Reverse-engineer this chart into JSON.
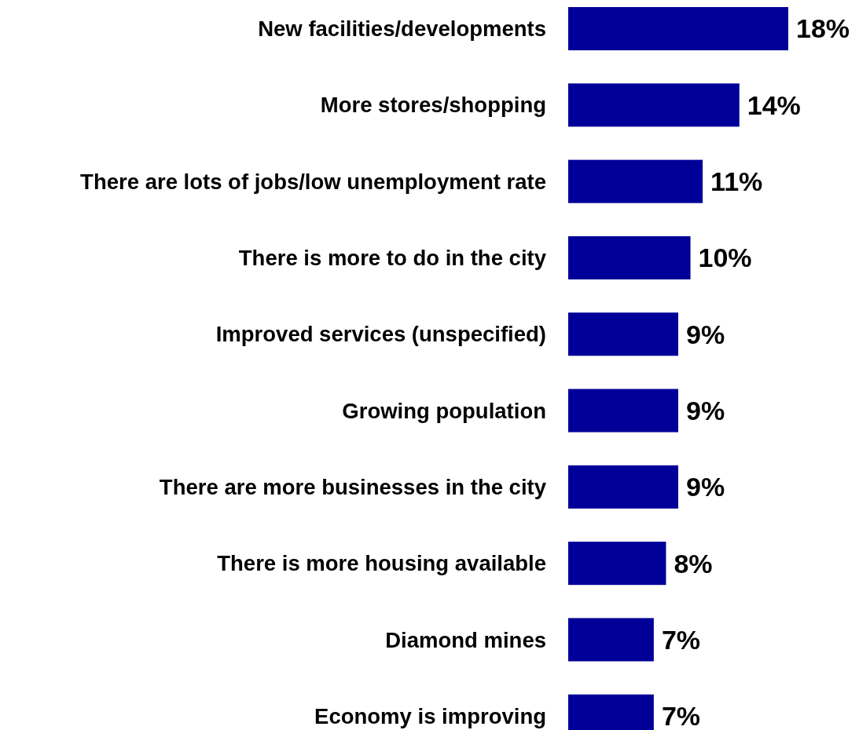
{
  "chart_data": {
    "type": "bar",
    "orientation": "horizontal",
    "categories": [
      "New facilities/developments",
      "More stores/shopping",
      "There are lots of jobs/low unemployment rate",
      "There is more to do in the city",
      "Improved services (unspecified)",
      "Growing population",
      "There are more businesses in the city",
      "There is more housing available",
      "Diamond mines",
      "Economy is improving"
    ],
    "values": [
      18,
      14,
      11,
      10,
      9,
      9,
      9,
      8,
      7,
      7
    ],
    "value_labels": [
      "18%",
      "14%",
      "11%",
      "10%",
      "9%",
      "9%",
      "9%",
      "8%",
      "7%",
      "7%"
    ],
    "color": "#000099"
  }
}
